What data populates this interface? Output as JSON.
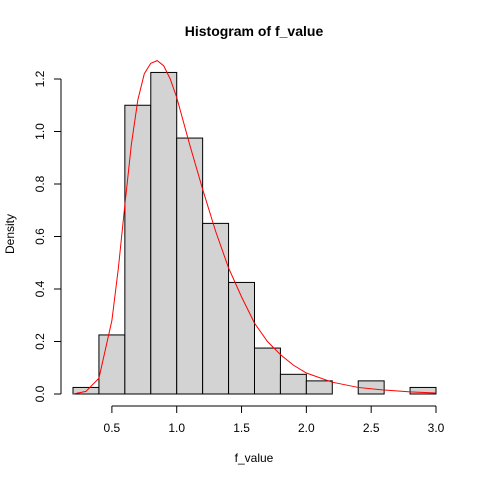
{
  "chart_data": {
    "type": "bar",
    "title": "Histogram of f_value",
    "xlabel": "f_value",
    "ylabel": "Density",
    "xlim": [
      0.2,
      3.0
    ],
    "ylim": [
      0,
      1.25
    ],
    "grid": false,
    "legend": "none",
    "x_ticks": [
      "0.5",
      "1.0",
      "1.5",
      "2.0",
      "2.5",
      "3.0"
    ],
    "x_tick_values": [
      0.5,
      1.0,
      1.5,
      2.0,
      2.5,
      3.0
    ],
    "y_ticks": [
      "0.0",
      "0.2",
      "0.4",
      "0.6",
      "0.8",
      "1.0",
      "1.2"
    ],
    "y_tick_values": [
      0.0,
      0.2,
      0.4,
      0.6,
      0.8,
      1.0,
      1.2
    ],
    "bins": [
      {
        "x0": 0.2,
        "x1": 0.4,
        "density": 0.025
      },
      {
        "x0": 0.4,
        "x1": 0.6,
        "density": 0.225
      },
      {
        "x0": 0.6,
        "x1": 0.8,
        "density": 1.1
      },
      {
        "x0": 0.8,
        "x1": 1.0,
        "density": 1.225
      },
      {
        "x0": 1.0,
        "x1": 1.2,
        "density": 0.975
      },
      {
        "x0": 1.2,
        "x1": 1.4,
        "density": 0.65
      },
      {
        "x0": 1.4,
        "x1": 1.6,
        "density": 0.425
      },
      {
        "x0": 1.6,
        "x1": 1.8,
        "density": 0.175
      },
      {
        "x0": 1.8,
        "x1": 2.0,
        "density": 0.075
      },
      {
        "x0": 2.0,
        "x1": 2.2,
        "density": 0.05
      },
      {
        "x0": 2.2,
        "x1": 2.4,
        "density": 0.0
      },
      {
        "x0": 2.4,
        "x1": 2.6,
        "density": 0.05
      },
      {
        "x0": 2.6,
        "x1": 2.8,
        "density": 0.0
      },
      {
        "x0": 2.8,
        "x1": 3.0,
        "density": 0.025
      }
    ],
    "density_curve": {
      "x": [
        0.2,
        0.3,
        0.4,
        0.5,
        0.55,
        0.6,
        0.65,
        0.7,
        0.75,
        0.8,
        0.85,
        0.9,
        0.95,
        1.0,
        1.05,
        1.1,
        1.2,
        1.3,
        1.4,
        1.5,
        1.6,
        1.7,
        1.8,
        1.9,
        2.0,
        2.2,
        2.4,
        2.6,
        2.8,
        3.0
      ],
      "y": [
        0.0,
        0.01,
        0.06,
        0.28,
        0.48,
        0.72,
        0.95,
        1.12,
        1.22,
        1.26,
        1.27,
        1.25,
        1.2,
        1.13,
        1.04,
        0.95,
        0.78,
        0.62,
        0.48,
        0.37,
        0.27,
        0.2,
        0.15,
        0.11,
        0.08,
        0.045,
        0.025,
        0.015,
        0.008,
        0.004
      ]
    },
    "colors": {
      "bar_fill": "#d3d3d3",
      "bar_stroke": "#000000",
      "curve": "#ff0000"
    }
  }
}
